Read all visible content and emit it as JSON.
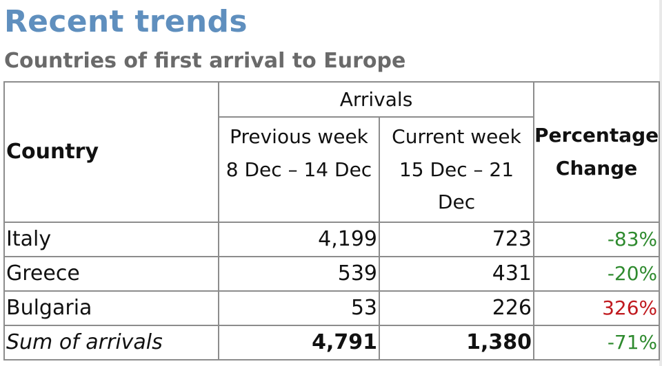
{
  "title": "Recent trends",
  "subtitle": "Countries of first arrival to Europe",
  "table": {
    "country_header": "Country",
    "arrivals_header": "Arrivals",
    "previous_week": {
      "label": "Previous week",
      "dates": "8 Dec – 14 Dec"
    },
    "current_week": {
      "label": "Current week",
      "dates": "15 Dec – 21 Dec"
    },
    "percentage_header": {
      "line1": "Percentage",
      "line2": "Change"
    },
    "rows": [
      {
        "country": "Italy",
        "previous": "4,199",
        "current": "723",
        "change": "-83%",
        "trend": "decrease"
      },
      {
        "country": "Greece",
        "previous": "539",
        "current": "431",
        "change": "-20%",
        "trend": "decrease"
      },
      {
        "country": "Bulgaria",
        "previous": "53",
        "current": "226",
        "change": "326%",
        "trend": "increase"
      }
    ],
    "sum": {
      "label": "Sum of arrivals",
      "previous": "4,791",
      "current": "1,380",
      "change": "-71%",
      "trend": "decrease"
    }
  },
  "colors": {
    "title": "#5f8fbe",
    "decrease": "#2e8a2e",
    "increase": "#c0191e"
  }
}
